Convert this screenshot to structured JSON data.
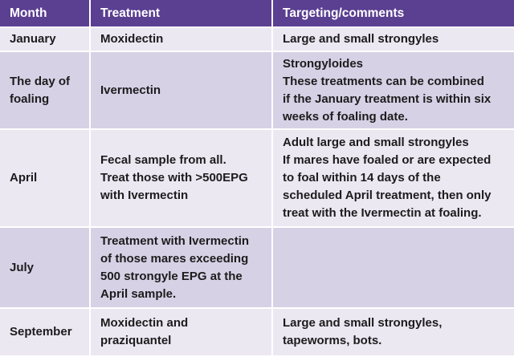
{
  "table": {
    "headers": [
      "Month",
      "Treatment",
      "Targeting/comments"
    ],
    "rows": [
      {
        "month": "January",
        "treatment": [
          "Moxidectin"
        ],
        "comments": [
          "Large and small strongyles"
        ]
      },
      {
        "month": [
          "The day of",
          "foaling"
        ],
        "treatment": [
          "Ivermectin"
        ],
        "comments": [
          "Strongyloides",
          "These treatments can be combined",
          "if the January treatment is within six",
          "weeks of foaling date."
        ]
      },
      {
        "month": "April",
        "treatment": [
          "Fecal sample from all.",
          "Treat those with >500EPG",
          "with Ivermectin"
        ],
        "comments": [
          "Adult large and small strongyles",
          "If mares have foaled or are expected",
          "to foal within 14 days of the",
          "scheduled April treatment, then only",
          "treat with the Ivermectin at foaling."
        ]
      },
      {
        "month": "July",
        "treatment": [
          "Treatment with Ivermectin",
          "of those mares exceeding",
          "500 strongyle EPG at the",
          "April sample."
        ],
        "comments": []
      },
      {
        "month": "September",
        "treatment": [
          "Moxidectin and",
          "praziquantel"
        ],
        "comments": [
          "Large and small strongyles,",
          "tapeworms, bots."
        ]
      }
    ]
  },
  "colors": {
    "header_bg": "#5b3f91",
    "row_light": "#ebe8f2",
    "row_dark": "#d7d1e6"
  }
}
